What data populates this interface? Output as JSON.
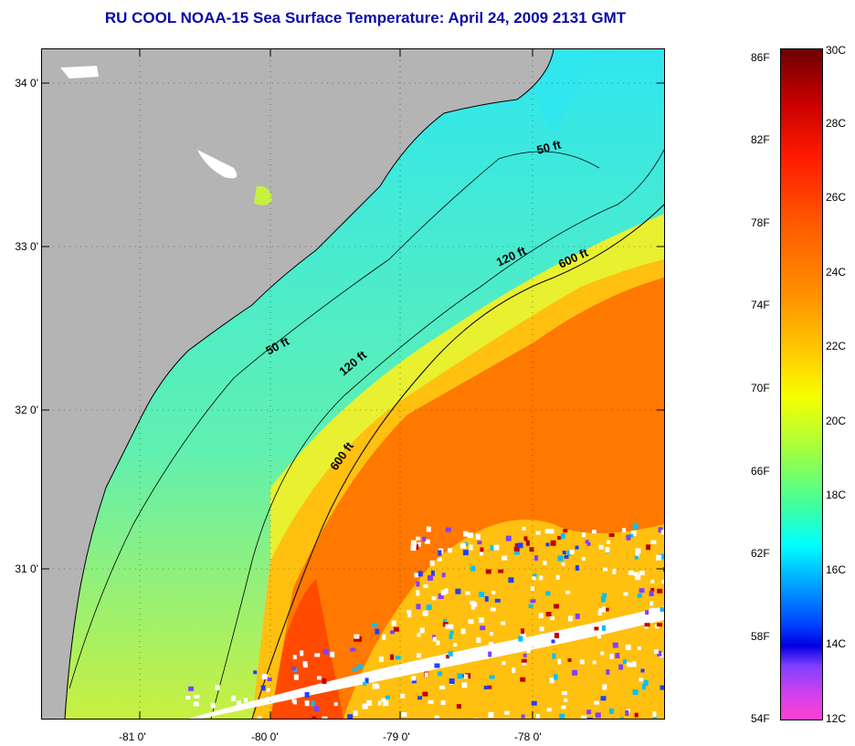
{
  "title": "RU COOL  NOAA-15  Sea Surface Temperature:  April 24, 2009 2131 GMT",
  "map": {
    "lat_labels": [
      "34 0'",
      "33 0'",
      "32 0'",
      "31 0'"
    ],
    "lon_labels": [
      "-81 0'",
      "-80 0'",
      "-79 0'",
      "-78 0'"
    ],
    "isobath_labels": [
      {
        "text": "50 ft",
        "isobath": 50
      },
      {
        "text": "50 ft",
        "isobath": 50
      },
      {
        "text": "120 ft",
        "isobath": 120
      },
      {
        "text": "120 ft",
        "isobath": 120
      },
      {
        "text": "600 ft",
        "isobath": 600
      },
      {
        "text": "600 ft",
        "isobath": 600
      }
    ],
    "colors": {
      "land": "#b4b4b4",
      "cold_water": "#30e8e8",
      "shelf_water": "#60f0a0",
      "warm_water": "#ff7a00",
      "gulf_stream_core": "#ff5200",
      "cloud": "#ffffff"
    }
  },
  "colorbar": {
    "fahrenheit_labels": [
      "86F",
      "82F",
      "78F",
      "74F",
      "70F",
      "66F",
      "62F",
      "58F",
      "54F"
    ],
    "celsius_labels": [
      "30C",
      "28C",
      "26C",
      "24C",
      "22C",
      "20C",
      "18C",
      "16C",
      "14C",
      "12C"
    ]
  }
}
